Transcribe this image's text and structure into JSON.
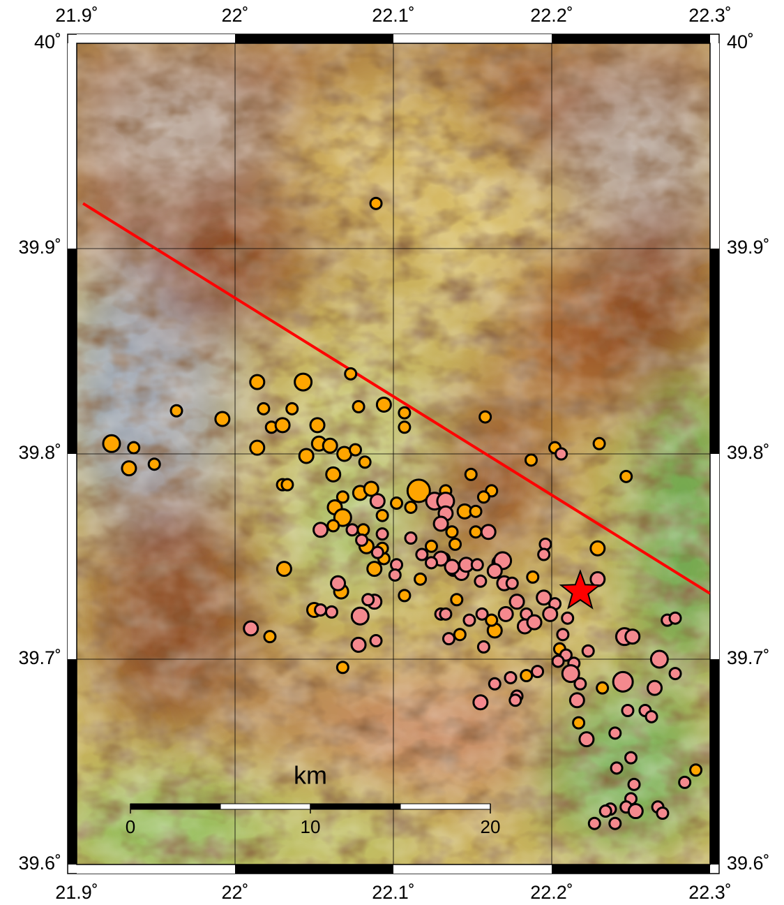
{
  "chart_data": {
    "type": "scatter",
    "xlim": [
      21.9,
      22.3
    ],
    "ylim": [
      39.6,
      40
    ],
    "xticks": [
      {
        "value": 21.9,
        "label": "21.9˚"
      },
      {
        "value": 22,
        "label": "22˚"
      },
      {
        "value": 22.1,
        "label": "22.1˚"
      },
      {
        "value": 22.2,
        "label": "22.2˚"
      },
      {
        "value": 22.3,
        "label": "22.3˚"
      }
    ],
    "yticks": [
      {
        "value": 39.6,
        "label": "39.6˚"
      },
      {
        "value": 39.7,
        "label": "39.7˚"
      },
      {
        "value": 39.8,
        "label": "39.8˚"
      },
      {
        "value": 39.9,
        "label": "39.9˚"
      },
      {
        "value": 40,
        "label": "40˚"
      }
    ],
    "grid": true,
    "series": [
      {
        "color": "#ffa500",
        "x": [
          22.089,
          21.922,
          21.936,
          21.933,
          21.949,
          21.963,
          21.992,
          22.014,
          22.018,
          22.014,
          22.023,
          22.03,
          22.036,
          22.043,
          22.052,
          22.053,
          22.045,
          22.06,
          22.069,
          22.073,
          22.078,
          22.094,
          22.107,
          22.107,
          22.076,
          22.082,
          22.062,
          22.03,
          22.033,
          22.068,
          22.063,
          22.068,
          22.062,
          22.079,
          22.086,
          22.093,
          22.081,
          22.083,
          22.088,
          22.094,
          22.093,
          22.116,
          22.102,
          22.111,
          22.031,
          22.067,
          22.068,
          22.022,
          22.05,
          22.107,
          22.117,
          22.124,
          22.133,
          22.145,
          22.152,
          22.149,
          22.162,
          22.157,
          22.152,
          22.139,
          22.158,
          22.187,
          22.202,
          22.23,
          22.247,
          22.229,
          22.188,
          22.205,
          22.164,
          22.162,
          22.184,
          22.217,
          22.232,
          22.291,
          22.142,
          22.14,
          22.132,
          22.137
        ],
        "y": [
          39.922,
          39.805,
          39.803,
          39.793,
          39.795,
          39.821,
          39.817,
          39.835,
          39.822,
          39.803,
          39.813,
          39.814,
          39.822,
          39.835,
          39.814,
          39.805,
          39.799,
          39.804,
          39.8,
          39.839,
          39.823,
          39.824,
          39.82,
          39.813,
          39.802,
          39.796,
          39.79,
          39.785,
          39.785,
          39.779,
          39.774,
          39.769,
          39.765,
          39.781,
          39.783,
          39.77,
          39.763,
          39.755,
          39.744,
          39.749,
          39.754,
          39.782,
          39.776,
          39.774,
          39.744,
          39.733,
          39.696,
          39.711,
          39.724,
          39.731,
          39.739,
          39.755,
          39.782,
          39.772,
          39.772,
          39.79,
          39.782,
          39.779,
          39.762,
          39.756,
          39.818,
          39.797,
          39.803,
          39.805,
          39.789,
          39.754,
          39.74,
          39.705,
          39.714,
          39.719,
          39.692,
          39.669,
          39.686,
          39.646,
          39.712,
          39.729,
          39.749,
          39.762
        ],
        "sizes": [
          2,
          3,
          2,
          2.5,
          2,
          2,
          2.5,
          2.5,
          2,
          2.5,
          2,
          2.5,
          2,
          3,
          2.5,
          2.5,
          2.5,
          2.5,
          2.5,
          2,
          2,
          2.5,
          2,
          2,
          2,
          2,
          2.5,
          2,
          2,
          2,
          2.5,
          3,
          2,
          2.5,
          2.5,
          2,
          2,
          2.5,
          2.5,
          2,
          2,
          4,
          2,
          2,
          2.5,
          2.5,
          2,
          2,
          2.5,
          2,
          2,
          2,
          2,
          2.5,
          2,
          2,
          2,
          2,
          2,
          2,
          2,
          2,
          2,
          2,
          2,
          2.5,
          2,
          2,
          2.5,
          2,
          2,
          2,
          2,
          2,
          2,
          2,
          2,
          2
        ]
      },
      {
        "color": "#f4898e",
        "x": [
          22.09,
          22.054,
          22.074,
          22.09,
          22.102,
          22.101,
          22.126,
          22.133,
          22.133,
          22.13,
          22.13,
          22.124,
          22.138,
          22.143,
          22.146,
          22.16,
          22.153,
          22.155,
          22.167,
          22.169,
          22.164,
          22.17,
          22.175,
          22.178,
          22.171,
          22.184,
          22.183,
          22.189,
          22.195,
          22.196,
          22.195,
          22.202,
          22.199,
          22.21,
          22.207,
          22.209,
          22.214,
          22.212,
          22.223,
          22.218,
          22.216,
          22.222,
          22.229,
          22.246,
          22.251,
          22.268,
          22.278,
          22.273,
          22.278,
          22.245,
          22.24,
          22.25,
          22.241,
          22.252,
          22.25,
          22.247,
          22.237,
          22.234,
          22.227,
          22.24,
          22.253,
          22.267,
          22.27,
          22.284,
          22.248,
          22.259,
          22.263,
          22.265,
          22.204,
          22.191,
          22.178,
          22.174,
          22.164,
          22.155,
          22.177,
          22.137,
          22.156,
          22.148,
          22.157,
          22.135,
          22.13,
          22.133,
          22.078,
          22.088,
          22.084,
          22.079,
          22.089,
          22.054,
          22.061,
          22.01,
          22.065,
          22.08,
          22.093,
          22.111,
          22.118,
          22.206
        ],
        "y": [
          39.777,
          39.763,
          39.763,
          39.752,
          39.746,
          39.741,
          39.777,
          39.777,
          39.771,
          39.766,
          39.749,
          39.747,
          39.744,
          39.742,
          39.746,
          39.762,
          39.746,
          39.738,
          39.747,
          39.748,
          39.743,
          39.737,
          39.737,
          39.728,
          39.722,
          39.722,
          39.716,
          39.718,
          39.73,
          39.756,
          39.751,
          39.727,
          39.722,
          39.72,
          39.712,
          39.702,
          39.698,
          39.693,
          39.704,
          39.688,
          39.68,
          39.661,
          39.739,
          39.711,
          39.711,
          39.7,
          39.693,
          39.719,
          39.72,
          39.689,
          39.664,
          39.652,
          39.647,
          39.639,
          39.632,
          39.628,
          39.627,
          39.626,
          39.62,
          39.62,
          39.626,
          39.628,
          39.625,
          39.64,
          39.675,
          39.675,
          39.672,
          39.686,
          39.699,
          39.694,
          39.682,
          39.691,
          39.688,
          39.679,
          39.68,
          39.745,
          39.722,
          39.719,
          39.706,
          39.71,
          39.722,
          39.722,
          39.707,
          39.728,
          39.729,
          39.721,
          39.709,
          39.724,
          39.723,
          39.715,
          39.737,
          39.758,
          39.761,
          39.759,
          39.751,
          39.8
        ],
        "sizes": [
          2.5,
          2.5,
          2,
          2,
          2,
          2,
          3,
          3,
          2.5,
          2.5,
          2.5,
          2,
          2.5,
          2.5,
          2.5,
          2.5,
          2,
          2,
          2.5,
          3,
          2.5,
          2.5,
          2,
          2.5,
          2.5,
          2,
          2.5,
          2.5,
          2.5,
          2,
          2,
          2,
          2.5,
          2,
          2,
          2,
          2,
          3,
          2,
          2,
          2.5,
          2.5,
          2.5,
          3,
          2.5,
          3,
          2,
          2,
          2,
          3.5,
          2,
          2,
          2,
          2,
          2,
          2,
          2,
          2,
          2,
          2,
          2.5,
          2,
          2,
          2,
          2,
          2,
          2,
          2.5,
          2,
          2,
          2,
          2,
          2,
          2.5,
          2,
          2.5,
          2,
          2,
          2,
          2,
          2,
          2,
          2.5,
          2.5,
          2,
          3,
          2,
          2,
          2,
          2.5,
          2.5,
          2,
          2,
          2,
          2,
          2
        ]
      }
    ],
    "fault": {
      "color": "#ff0000",
      "x": [
        21.904,
        22.3
      ],
      "y": [
        39.922,
        39.732
      ]
    },
    "star": {
      "color": "#ff0000",
      "x": 22.218,
      "y": 39.733
    },
    "scale_bar": {
      "title": "km",
      "ticks": [
        0,
        10,
        20
      ]
    }
  }
}
